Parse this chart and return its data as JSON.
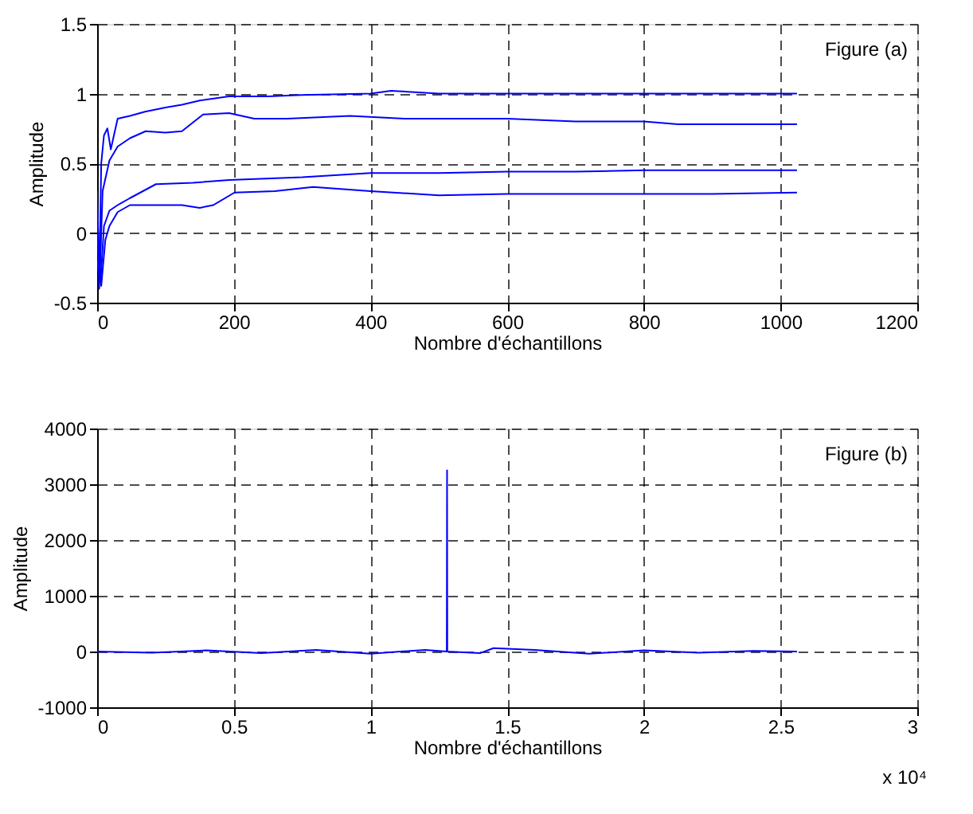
{
  "chart_data": [
    {
      "type": "line",
      "xlabel": "Nombre d'échantillons",
      "ylabel": "Amplitude",
      "xlim": [
        0,
        1200
      ],
      "xticks": [
        0,
        200,
        400,
        600,
        800,
        1000,
        1200
      ],
      "ylim": [
        -0.5,
        1.5
      ],
      "yticks": [
        -0.5,
        0,
        0.5,
        1,
        1.5
      ],
      "grid": true,
      "line_style": "solid",
      "marker": "none",
      "annotations": [
        "Figure (a)"
      ],
      "series": [
        {
          "color": "#0000ff",
          "x": [
            0,
            3,
            6,
            10,
            15,
            20,
            30,
            48,
            70,
            100,
            124,
            150,
            193,
            250,
            300,
            400,
            430,
            500,
            600,
            700,
            800,
            900,
            1024
          ],
          "values": [
            0.3,
            -0.4,
            0.5,
            0.7,
            0.75,
            0.6,
            0.82,
            0.84,
            0.87,
            0.9,
            0.92,
            0.95,
            0.98,
            0.98,
            0.99,
            1.0,
            1.02,
            1.0,
            1.0,
            1.0,
            1.0,
            1.0,
            1.0
          ]
        },
        {
          "color": "#0000ff",
          "x": [
            0,
            4,
            8,
            18,
            30,
            48,
            71,
            100,
            124,
            155,
            193,
            230,
            278,
            370,
            450,
            600,
            700,
            800,
            850,
            1024
          ],
          "values": [
            0.2,
            -0.3,
            0.3,
            0.52,
            0.62,
            0.68,
            0.73,
            0.72,
            0.73,
            0.85,
            0.86,
            0.82,
            0.82,
            0.84,
            0.82,
            0.82,
            0.8,
            0.8,
            0.78,
            0.78
          ]
        },
        {
          "color": "#0000ff",
          "x": [
            0,
            5,
            10,
            18,
            30,
            48,
            86,
            140,
            193,
            300,
            400,
            500,
            600,
            700,
            800,
            900,
            1024
          ],
          "values": [
            0.0,
            -0.35,
            0.05,
            0.16,
            0.2,
            0.25,
            0.35,
            0.36,
            0.38,
            0.4,
            0.43,
            0.43,
            0.44,
            0.44,
            0.45,
            0.45,
            0.45
          ]
        },
        {
          "color": "#0000ff",
          "x": [
            0,
            6,
            12,
            18,
            30,
            48,
            86,
            124,
            150,
            170,
            201,
            260,
            316,
            400,
            500,
            600,
            700,
            800,
            900,
            1024
          ],
          "values": [
            -0.2,
            -0.38,
            -0.05,
            0.05,
            0.15,
            0.2,
            0.2,
            0.2,
            0.18,
            0.2,
            0.29,
            0.3,
            0.33,
            0.3,
            0.27,
            0.28,
            0.28,
            0.28,
            0.28,
            0.29
          ]
        }
      ]
    },
    {
      "type": "line",
      "xlabel": "Nombre d'échantillons",
      "ylabel": "Amplitude",
      "xlim": [
        0,
        3
      ],
      "xticks": [
        0,
        0.5,
        1,
        1.5,
        2,
        2.5,
        3
      ],
      "ylim": [
        -1000,
        4000
      ],
      "yticks": [
        -1000,
        0,
        1000,
        2000,
        3000,
        4000
      ],
      "grid": true,
      "line_style": "solid",
      "marker": "none",
      "annotations": [
        "Figure (b)",
        "x 10⁴"
      ],
      "series": [
        {
          "color": "#0000ff",
          "x": [
            0,
            0.2,
            0.4,
            0.6,
            0.8,
            1.0,
            1.2,
            1.279,
            1.28,
            1.281,
            1.4,
            1.45,
            1.6,
            1.8,
            2.0,
            2.2,
            2.4,
            2.56
          ],
          "values": [
            0,
            -20,
            20,
            -30,
            30,
            -40,
            30,
            0,
            3250,
            0,
            -30,
            60,
            30,
            -40,
            20,
            -20,
            10,
            0
          ]
        }
      ]
    }
  ]
}
